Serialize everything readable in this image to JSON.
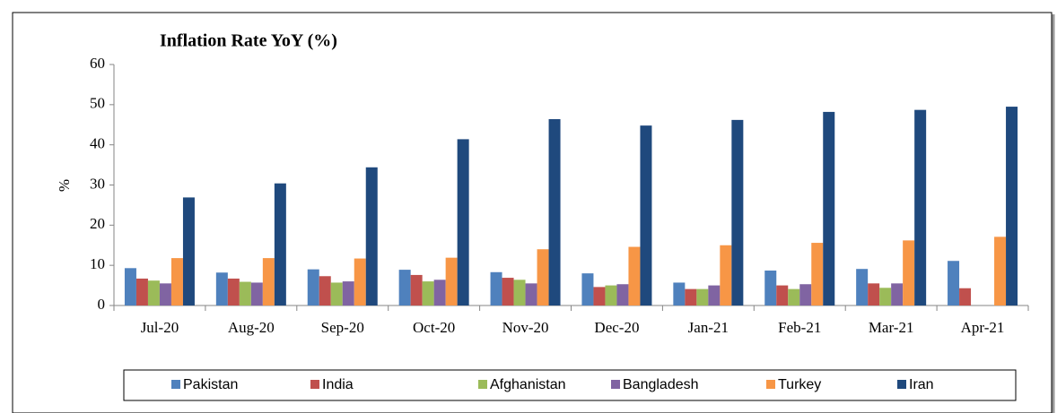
{
  "chart_data": {
    "type": "bar",
    "title": "Inflation Rate YoY (%)",
    "ylabel": "%",
    "categories": [
      "Jul-20",
      "Aug-20",
      "Sep-20",
      "Oct-20",
      "Nov-20",
      "Dec-20",
      "Jan-21",
      "Feb-21",
      "Mar-21",
      "Apr-21"
    ],
    "series": [
      {
        "name": "Pakistan",
        "color": "#4f81bd",
        "values": [
          9.3,
          8.2,
          9.0,
          8.9,
          8.3,
          8.0,
          5.7,
          8.7,
          9.1,
          11.1
        ]
      },
      {
        "name": "India",
        "color": "#c0504d",
        "values": [
          6.7,
          6.7,
          7.3,
          7.6,
          6.9,
          4.6,
          4.1,
          5.0,
          5.5,
          4.3
        ]
      },
      {
        "name": "Afghanistan",
        "color": "#9bbb59",
        "values": [
          6.2,
          5.9,
          5.7,
          6.0,
          6.4,
          5.0,
          4.1,
          4.1,
          4.4,
          null
        ]
      },
      {
        "name": "Bangladesh",
        "color": "#8064a2",
        "values": [
          5.5,
          5.7,
          6.0,
          6.4,
          5.5,
          5.3,
          5.0,
          5.3,
          5.5,
          null
        ]
      },
      {
        "name": "Turkey",
        "color": "#f79646",
        "values": [
          11.8,
          11.8,
          11.7,
          11.9,
          14.0,
          14.6,
          15.0,
          15.6,
          16.2,
          17.1
        ]
      },
      {
        "name": "Iran",
        "color": "#1f497d",
        "values": [
          26.9,
          30.4,
          34.4,
          41.4,
          46.4,
          44.8,
          46.2,
          48.2,
          48.7,
          49.5
        ]
      }
    ],
    "ylim": [
      0,
      60
    ],
    "yticks": [
      0,
      10,
      20,
      30,
      40,
      50,
      60
    ],
    "grid": false,
    "legend": "bottom"
  }
}
